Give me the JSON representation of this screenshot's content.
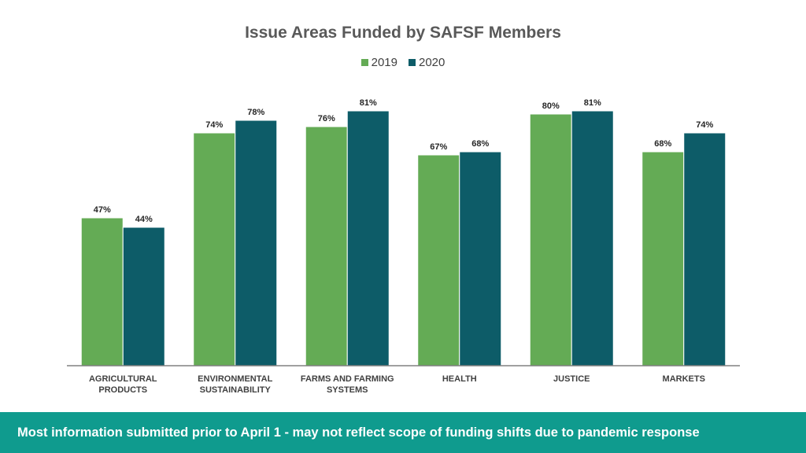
{
  "chart_data": {
    "type": "bar",
    "title": "Issue Areas Funded by SAFSF Members",
    "categories": [
      [
        "AGRICULTURAL",
        "PRODUCTS"
      ],
      [
        "ENVIRONMENTAL",
        "SUSTAINABILITY"
      ],
      [
        "FARMS AND FARMING",
        "SYSTEMS"
      ],
      [
        "HEALTH"
      ],
      [
        "JUSTICE"
      ],
      [
        "MARKETS"
      ]
    ],
    "series": [
      {
        "name": "2019",
        "color": "#64ab55",
        "values": [
          47,
          74,
          76,
          67,
          80,
          68
        ]
      },
      {
        "name": "2020",
        "color": "#0d5c68",
        "values": [
          44,
          78,
          81,
          68,
          81,
          74
        ]
      }
    ],
    "value_suffix": "%",
    "ylim": [
      0,
      100
    ],
    "grid": false,
    "legend": "top-center"
  },
  "footer": {
    "text": "Most information submitted prior to April 1 - may not reflect scope of funding shifts due to pandemic response"
  }
}
